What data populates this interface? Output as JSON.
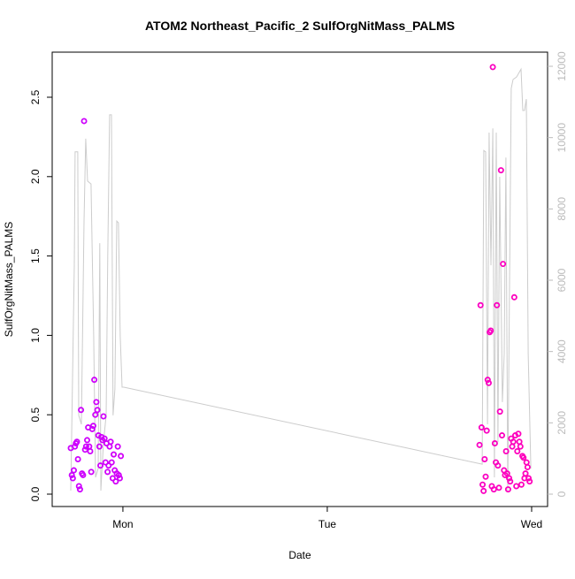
{
  "chart_data": {
    "type": "scatter",
    "title": "ATOM2 Northeast_Pacific_2 SulfOrgNitMass_PALMS",
    "xlabel": "Date",
    "ylabel": "SulfOrgNitMass_PALMS",
    "x": [
      0.745,
      0.75,
      0.755,
      0.76,
      0.765,
      0.77,
      0.775,
      0.78,
      0.785,
      0.79,
      0.795,
      0.8,
      0.805,
      0.81,
      0.815,
      0.82,
      0.825,
      0.83,
      0.835,
      0.84,
      0.845,
      0.85,
      0.855,
      0.86,
      0.865,
      0.87,
      0.875,
      0.88,
      0.885,
      0.89,
      0.895,
      0.9,
      0.905,
      0.91,
      0.915,
      0.92,
      0.925,
      0.93,
      0.935,
      0.94,
      0.945,
      0.95,
      0.955,
      0.96,
      0.965,
      0.97,
      0.975,
      0.98,
      0.985,
      0.99,
      2.745,
      2.75,
      2.755,
      2.76,
      2.765,
      2.77,
      2.775,
      2.78,
      2.785,
      2.79,
      2.795,
      2.8,
      2.805,
      2.81,
      2.815,
      2.82,
      2.825,
      2.83,
      2.835,
      2.84,
      2.845,
      2.85,
      2.855,
      2.86,
      2.865,
      2.87,
      2.875,
      2.88,
      2.885,
      2.89,
      2.895,
      2.9,
      2.905,
      2.91,
      2.915,
      2.92,
      2.925,
      2.93,
      2.935,
      2.94,
      2.945,
      2.95,
      2.955,
      2.96,
      2.965,
      2.97,
      2.975,
      2.98,
      2.985,
      2.99
    ],
    "values": [
      0.29,
      0.12,
      0.1,
      0.15,
      0.3,
      0.32,
      0.33,
      0.22,
      0.05,
      0.03,
      0.53,
      0.13,
      0.12,
      2.35,
      0.28,
      0.3,
      0.34,
      0.42,
      0.3,
      0.27,
      0.14,
      0.41,
      0.43,
      0.72,
      0.5,
      0.58,
      0.53,
      0.37,
      0.3,
      0.18,
      0.36,
      0.34,
      0.49,
      0.35,
      0.2,
      0.32,
      0.14,
      0.18,
      0.3,
      0.33,
      0.2,
      0.1,
      0.25,
      0.15,
      0.08,
      0.13,
      0.3,
      0.12,
      0.1,
      0.24,
      0.31,
      1.19,
      0.42,
      0.06,
      0.02,
      0.22,
      0.11,
      0.4,
      0.72,
      0.7,
      1.02,
      1.03,
      0.05,
      2.69,
      0.03,
      0.32,
      0.2,
      1.19,
      0.18,
      0.04,
      0.52,
      2.04,
      0.37,
      1.45,
      0.15,
      0.12,
      0.27,
      0.13,
      0.03,
      0.1,
      0.08,
      0.35,
      0.3,
      0.33,
      1.24,
      0.37,
      0.05,
      0.27,
      0.38,
      0.33,
      0.3,
      0.06,
      0.24,
      0.23,
      0.1,
      0.13,
      0.2,
      0.17,
      0.1,
      0.08
    ],
    "point_color_range": [
      "#cc00ff",
      "#ff00bb"
    ],
    "line": {
      "color": "#cccccc",
      "axis": "y2",
      "x": [
        0.745,
        0.762,
        0.766,
        0.779,
        0.784,
        0.797,
        0.81,
        0.818,
        0.827,
        0.844,
        0.857,
        0.866,
        0.879,
        0.887,
        0.892,
        0.905,
        0.918,
        0.926,
        0.935,
        0.944,
        0.952,
        0.961,
        0.97,
        0.978,
        0.987,
        0.996,
        1.004,
        2.758,
        2.766,
        2.775,
        2.784,
        2.792,
        2.801,
        2.81,
        2.818,
        2.827,
        2.835,
        2.844,
        2.857,
        2.866,
        2.874,
        2.883,
        2.9,
        2.909,
        2.926,
        2.948,
        2.957,
        2.965,
        2.974,
        2.983,
        2.996
      ],
      "values": [
        100,
        6420,
        9600,
        9600,
        2210,
        1960,
        7660,
        9970,
        8780,
        8700,
        4440,
        470,
        720,
        7040,
        100,
        1460,
        2210,
        6670,
        10640,
        10640,
        2210,
        2950,
        7660,
        7610,
        4440,
        3000,
        3000,
        840,
        9640,
        9600,
        1960,
        10140,
        6420,
        10260,
        470,
        10140,
        1460,
        8900,
        2580,
        3940,
        9440,
        100,
        11380,
        11630,
        11700,
        11920,
        10760,
        10760,
        11080,
        3940,
        720
      ]
    },
    "xlim": [
      0.654,
      3.078
    ],
    "xticks": [
      {
        "value": 1,
        "label": "Mon"
      },
      {
        "value": 2,
        "label": "Tue"
      },
      {
        "value": 3,
        "label": "Wed"
      }
    ],
    "ylim": [
      -0.078,
      2.784
    ],
    "yticks": [
      {
        "value": 0,
        "label": "0.0"
      },
      0.5,
      {
        "value": 1,
        "label": "1.0"
      },
      1.5,
      {
        "value": 2,
        "label": "2.0"
      },
      2.5
    ],
    "y2lim": [
      -347,
      12397
    ],
    "y2ticks": [
      0,
      2000,
      4000,
      6000,
      8000,
      10000,
      12000
    ],
    "y2tick_color": "#bbbbbb"
  }
}
